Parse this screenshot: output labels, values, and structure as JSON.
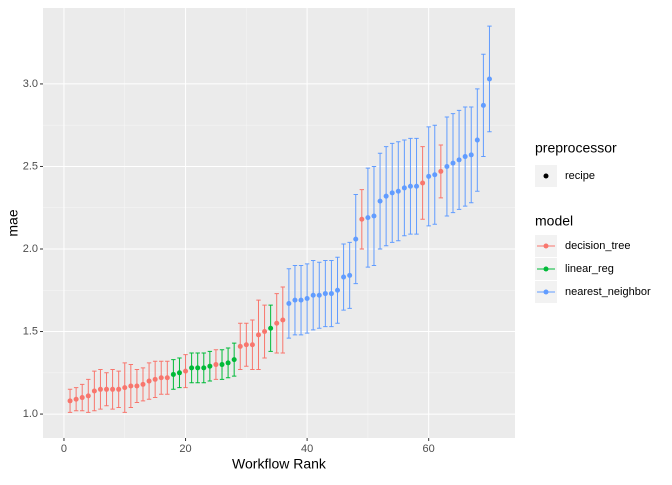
{
  "chart_data": {
    "type": "errorbar",
    "x_label": "Workflow Rank",
    "y_label": "mae",
    "xlim": [
      -3.45,
      74.2
    ],
    "ylim": [
      0.855,
      3.46
    ],
    "xticks": [
      0,
      20,
      40,
      60
    ],
    "yticks": [
      {
        "value": 1,
        "label": "1.0"
      },
      1.5,
      {
        "value": 2,
        "label": "2.0"
      },
      2.5,
      {
        "value": 3,
        "label": "3.0"
      }
    ],
    "grid": true,
    "legend_position": "right",
    "shape_legend": {
      "title": "preprocessor",
      "labels": [
        "recipe"
      ]
    },
    "legend_title": "model",
    "series": [
      {
        "name": "decision_tree",
        "color": "#F8766D",
        "x": [
          1,
          2,
          3,
          4,
          5,
          6,
          7,
          8,
          9,
          10,
          11,
          12,
          13,
          14,
          15,
          16,
          17,
          20,
          25,
          29,
          30,
          31,
          32,
          33,
          35,
          36,
          49,
          59,
          62
        ],
        "values": [
          1.08,
          1.09,
          1.1,
          1.11,
          1.14,
          1.15,
          1.15,
          1.15,
          1.15,
          1.16,
          1.17,
          1.17,
          1.18,
          1.2,
          1.21,
          1.22,
          1.22,
          1.26,
          1.3,
          1.41,
          1.42,
          1.42,
          1.48,
          1.5,
          1.55,
          1.57,
          2.18,
          2.4,
          2.47
        ],
        "errors": [
          0.07,
          0.07,
          0.08,
          0.1,
          0.12,
          0.12,
          0.1,
          0.12,
          0.11,
          0.15,
          0.13,
          0.1,
          0.1,
          0.11,
          0.11,
          0.1,
          0.1,
          0.1,
          0.09,
          0.14,
          0.13,
          0.15,
          0.21,
          0.16,
          0.18,
          0.2,
          0.18,
          0.22,
          0.16
        ]
      },
      {
        "name": "linear_reg",
        "color": "#00BA38",
        "x": [
          18,
          19,
          21,
          22,
          23,
          24,
          26,
          27,
          28,
          34
        ],
        "values": [
          1.24,
          1.25,
          1.28,
          1.28,
          1.28,
          1.29,
          1.3,
          1.31,
          1.33,
          1.52
        ],
        "errors": [
          0.09,
          0.09,
          0.09,
          0.09,
          0.09,
          0.09,
          0.09,
          0.09,
          0.1,
          0.14
        ]
      },
      {
        "name": "nearest_neighbor",
        "color": "#619CFF",
        "x": [
          37,
          38,
          39,
          40,
          41,
          42,
          43,
          44,
          45,
          46,
          47,
          48,
          50,
          51,
          52,
          53,
          54,
          55,
          56,
          57,
          58,
          60,
          61,
          63,
          64,
          65,
          66,
          67,
          68,
          69,
          70
        ],
        "values": [
          1.67,
          1.69,
          1.69,
          1.7,
          1.72,
          1.72,
          1.73,
          1.73,
          1.75,
          1.83,
          1.84,
          2.06,
          2.19,
          2.2,
          2.29,
          2.32,
          2.34,
          2.35,
          2.37,
          2.38,
          2.38,
          2.44,
          2.45,
          2.5,
          2.52,
          2.54,
          2.56,
          2.57,
          2.66,
          2.87,
          3.03
        ],
        "errors": [
          0.21,
          0.21,
          0.21,
          0.21,
          0.21,
          0.2,
          0.2,
          0.2,
          0.2,
          0.2,
          0.2,
          0.27,
          0.3,
          0.3,
          0.29,
          0.3,
          0.3,
          0.3,
          0.29,
          0.29,
          0.29,
          0.3,
          0.3,
          0.3,
          0.3,
          0.3,
          0.3,
          0.29,
          0.31,
          0.31,
          0.32
        ]
      }
    ]
  }
}
